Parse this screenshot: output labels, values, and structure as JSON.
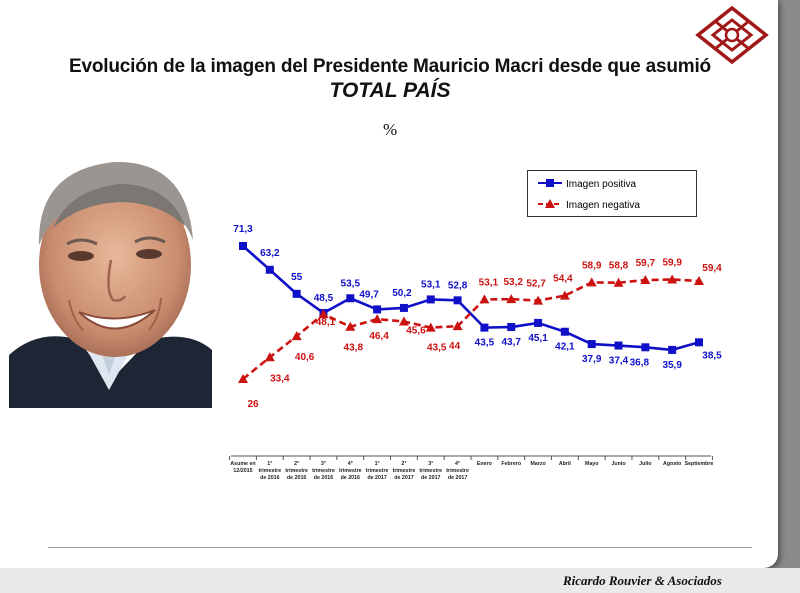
{
  "slide": {
    "title": "Evolución de la imagen del Presidente Mauricio Macri desde que asumió",
    "subtitle": "TOTAL PAÍS",
    "unit": "%",
    "credit": "Ricardo Rouvier & Asociados"
  },
  "colors": {
    "positive": "#1010c8",
    "negative": "#cc1111",
    "axis": "#555555"
  },
  "chart_data": {
    "type": "line",
    "title": "Evolución de la imagen del Presidente Mauricio Macri desde que asumió",
    "subtitle": "TOTAL PAÍS",
    "ylabel": "%",
    "xlabel": "",
    "ylim": [
      20,
      80
    ],
    "grid": false,
    "legend_position": "top-right",
    "categories": [
      [
        "Asume en",
        "12/2015"
      ],
      [
        "1°",
        "trimestre",
        "de 2016"
      ],
      [
        "2°",
        "trimestre",
        "de 2016"
      ],
      [
        "3°",
        "trimestre",
        "de 2016"
      ],
      [
        "4°",
        "trimestre",
        "de 2016"
      ],
      [
        "1°",
        "trimestre",
        "de 2017"
      ],
      [
        "2°",
        "trimestre",
        "de 2017"
      ],
      [
        "3°",
        "trimestre",
        "de 2017"
      ],
      [
        "4°",
        "trimestre",
        "de 2017"
      ],
      [
        "Enero"
      ],
      [
        "Febrero"
      ],
      [
        "Marzo"
      ],
      [
        "Abril"
      ],
      [
        "Mayo"
      ],
      [
        "Junio"
      ],
      [
        "Julio"
      ],
      [
        "Agosto"
      ],
      [
        "Septiembre"
      ]
    ],
    "series": [
      {
        "name": "Imagen positiva",
        "style": "solid",
        "marker": "square",
        "values": [
          71.3,
          63.2,
          55,
          48.5,
          53.5,
          49.7,
          50.2,
          53.1,
          52.8,
          43.5,
          43.7,
          45.1,
          42.1,
          37.9,
          37.4,
          36.8,
          35.9,
          38.5
        ],
        "labels": [
          "71,3",
          "63,2",
          "55",
          "48,5",
          "53,5",
          "49,7",
          "50,2",
          "53,1",
          "52,8",
          "43,5",
          "43,7",
          "45,1",
          "42,1",
          "37,9",
          "37,4",
          "36,8",
          "35,9",
          "38,5"
        ]
      },
      {
        "name": "Imagen negativa",
        "style": "dashed",
        "marker": "triangle",
        "values": [
          26,
          33.4,
          40.6,
          48.1,
          43.8,
          46.4,
          45.6,
          43.5,
          44,
          53.1,
          53.2,
          52.7,
          54.4,
          58.9,
          58.8,
          59.7,
          59.9,
          59.4
        ],
        "labels": [
          "26",
          "33,4",
          "40,6",
          "48,1",
          "43,8",
          "46,4",
          "45,6",
          "43,5",
          "44",
          "53,1",
          "53,2",
          "52,7",
          "54,4",
          "58,9",
          "58,8",
          "59,7",
          "59,9",
          "59,4"
        ]
      }
    ]
  }
}
